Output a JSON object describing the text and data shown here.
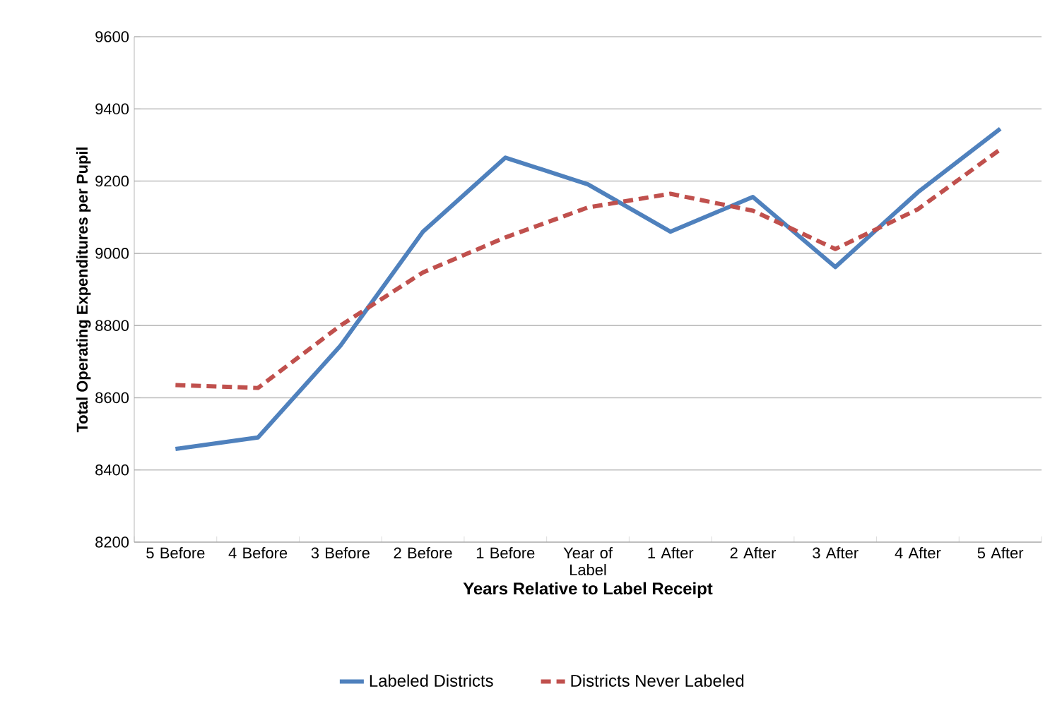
{
  "chart_data": {
    "type": "line",
    "xlabel": "Years Relative to Label Receipt",
    "ylabel": "Total Operating Expenditures per Pupil",
    "categories": [
      "5 Before",
      "4 Before",
      "3 Before",
      "2 Before",
      "1 Before",
      "Year of Label",
      "1 After",
      "2 After",
      "3 After",
      "4 After",
      "5 After"
    ],
    "series": [
      {
        "name": "Labeled Districts",
        "color": "#4f81bd",
        "line_style": "solid",
        "values": [
          8458,
          8490,
          8744,
          9060,
          9265,
          9191,
          9060,
          9156,
          8962,
          9169,
          9345
        ]
      },
      {
        "name": "Districts Never Labeled",
        "color": "#c0504d",
        "line_style": "dashed",
        "values": [
          8635,
          8627,
          8800,
          8947,
          9044,
          9127,
          9165,
          9118,
          9012,
          9122,
          9288
        ]
      }
    ],
    "ylim": [
      8200,
      9600
    ],
    "yticks": [
      8200,
      8400,
      8600,
      8800,
      9000,
      9200,
      9400,
      9600
    ],
    "grid": "y",
    "legend": "bottom",
    "marker": "none"
  }
}
